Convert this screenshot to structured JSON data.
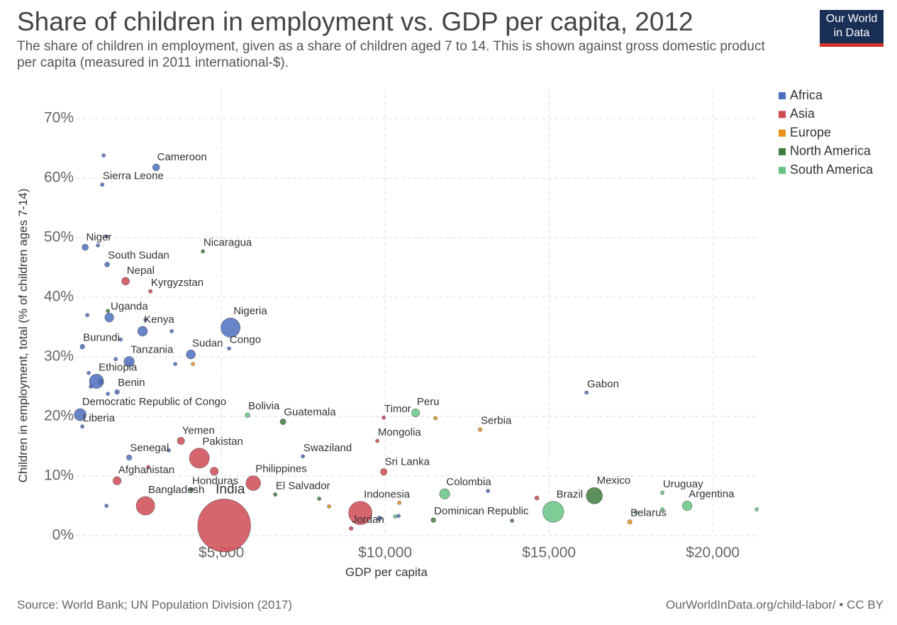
{
  "chart_data": {
    "type": "scatter",
    "title": "Share of children in employment vs. GDP per capita, 2012",
    "subtitle": "The share of children in employment, given as a share of children aged 7 to 14. This is shown against gross domestic product per capita (measured in 2011 international-$).",
    "logo": [
      "Our World",
      "in Data"
    ],
    "source": "Source: World Bank; UN Population Division (2017)",
    "url": "OurWorldInData.org/child-labor/ • CC BY",
    "x_label": "GDP per capita",
    "y_label": "Children in employment, total (% of children ages 7-14)",
    "xlim": [
      560,
      21360
    ],
    "ylim": [
      0,
      75
    ],
    "xticks": [
      {
        "value": 5000,
        "label": "$5,000"
      },
      {
        "value": 10000,
        "label": "$10,000"
      },
      {
        "value": 15000,
        "label": "$15,000"
      },
      {
        "value": 20000,
        "label": "$20,000"
      }
    ],
    "yticks": [
      {
        "value": 0,
        "label": "0%"
      },
      {
        "value": 10,
        "label": "10%"
      },
      {
        "value": 20,
        "label": "20%"
      },
      {
        "value": 30,
        "label": "30%"
      },
      {
        "value": 40,
        "label": "40%"
      },
      {
        "value": 50,
        "label": "50%"
      },
      {
        "value": 60,
        "label": "60%"
      },
      {
        "value": 70,
        "label": "70%"
      }
    ],
    "grid": true,
    "legend": "top-right",
    "series": [
      {
        "name": "Africa",
        "color": "#4e6fbf",
        "labels": [
          "Cameroon",
          null,
          "Sierra Leone",
          null,
          "Niger",
          null,
          "South Sudan",
          null,
          "Uganda",
          "Kenya",
          null,
          null,
          "Nigeria",
          "Congo",
          "Sudan",
          "Burundi",
          null,
          "Tanzania",
          null,
          null,
          "Ethiopia",
          null,
          null,
          null,
          "Benin",
          null,
          "Democratic Republic of Congo",
          "Liberia",
          "Senegal",
          null,
          null,
          "Swaziland",
          "Gabon",
          null,
          null,
          null
        ],
        "x": [
          3009,
          1407,
          1364,
          1494,
          844,
          1234,
          1515,
          909,
          1580,
          2597,
          2684,
          3485,
          5281,
          5238,
          4069,
          758,
          1926,
          2186,
          1775,
          3593,
          1190,
          1320,
          952,
          1017,
          1818,
          1537,
          693,
          758,
          2186,
          3398,
          1494,
          7489,
          16147,
          13139,
          9827,
          10411
        ],
        "values": [
          61.8,
          63.8,
          58.9,
          50.2,
          48.4,
          48.7,
          45.5,
          37.0,
          36.6,
          34.3,
          36.2,
          34.3,
          34.9,
          31.4,
          30.4,
          31.7,
          32.9,
          29.2,
          29.6,
          28.8,
          25.9,
          25.8,
          27.3,
          25.0,
          24.1,
          23.8,
          20.3,
          18.3,
          13.1,
          14.3,
          5.0,
          13.3,
          24.0,
          7.5,
          2.9,
          3.3
        ],
        "sizes": [
          22,
          1,
          6,
          1,
          18,
          1,
          11,
          1,
          36,
          43,
          1,
          2,
          168,
          4,
          37,
          10,
          1,
          48,
          2,
          3,
          92,
          10,
          5,
          5,
          10,
          1,
          66,
          4,
          13,
          1,
          1,
          1,
          2,
          2,
          10,
          1
        ]
      },
      {
        "name": "Asia",
        "color": "#cf4a55",
        "labels": [
          "Nepal",
          "Kyrgyzstan",
          "Yemen",
          "Pakistan",
          null,
          null,
          "Afghanistan",
          "Bangladesh",
          "India",
          "Philippines",
          "Timor",
          "Mongolia",
          "Sri Lanka",
          "Indonesia",
          "Jordan",
          null
        ],
        "x": [
          2078,
          2835,
          3766,
          4329,
          4784,
          2771,
          1818,
          2684,
          5087,
          5974,
          9957,
          9762,
          9957,
          9242,
          8961,
          14632
        ],
        "values": [
          42.7,
          41.0,
          15.9,
          13.0,
          10.8,
          11.5,
          9.2,
          5.0,
          1.7,
          8.8,
          19.8,
          15.9,
          10.7,
          3.8,
          1.2,
          6.3
        ],
        "sizes": [
          27,
          6,
          24,
          179,
          30,
          1,
          30,
          155,
          1263,
          97,
          1,
          3,
          20,
          247,
          7,
          8
        ]
      },
      {
        "name": "Europe",
        "color": "#e8941a",
        "labels": [
          null,
          null,
          null,
          null,
          "Serbia",
          "Belarus"
        ],
        "x": [
          4134,
          8290,
          10433,
          11537,
          12900,
          17468
        ],
        "values": [
          28.8,
          4.9,
          5.5,
          19.7,
          17.8,
          2.3
        ],
        "sizes": [
          1,
          2,
          1,
          1,
          7,
          9
        ]
      },
      {
        "name": "North America",
        "color": "#3e7d3e",
        "labels": [
          "Nicaragua",
          "Guatemala",
          "El Salvador",
          "Honduras",
          null,
          "Dominican Republic",
          null,
          "Mexico",
          null
        ],
        "x": [
          4437,
          6883,
          6645,
          4091,
          7987,
          11472,
          13874,
          16385,
          1537
        ],
        "values": [
          47.7,
          19.1,
          6.9,
          7.7,
          6.2,
          2.6,
          2.5,
          6.7,
          37.7
        ],
        "sizes": [
          6,
          15,
          6,
          8,
          1,
          10,
          1,
          120,
          1
        ]
      },
      {
        "name": "South America",
        "color": "#68c384",
        "labels": [
          "Bolivia",
          "Peru",
          "Colombia",
          "Brazil",
          "Uruguay",
          "Argentina",
          null,
          null,
          null,
          null
        ],
        "x": [
          5801,
          10931,
          11818,
          15130,
          18463,
          19221,
          17662,
          21342,
          10303,
          18463
        ],
        "values": [
          20.2,
          20.6,
          7.0,
          4.0,
          7.2,
          5.0,
          3.9,
          4.4,
          3.2,
          4.4
        ],
        "sizes": [
          10,
          30,
          47,
          199,
          3,
          42,
          1,
          1,
          2,
          1
        ]
      }
    ]
  }
}
